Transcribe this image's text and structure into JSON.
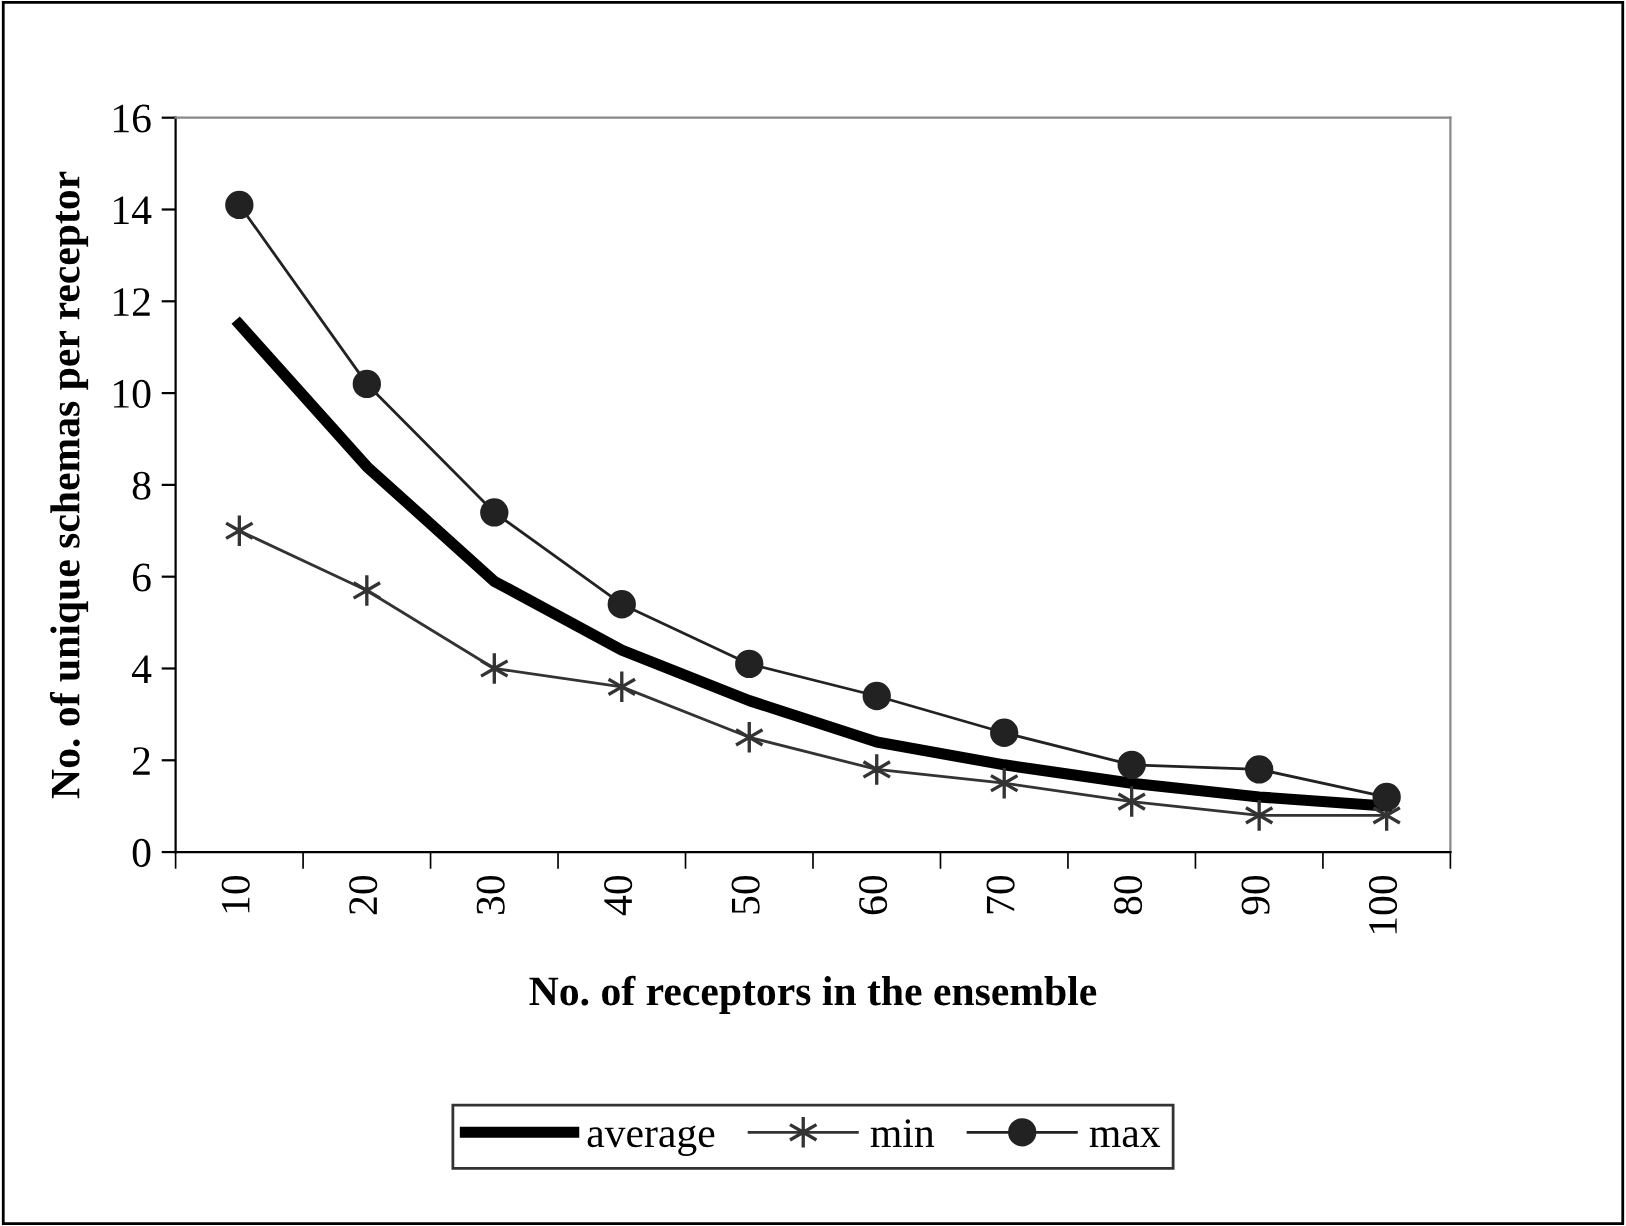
{
  "chart_data": {
    "type": "line",
    "xlabel": "No. of receptors in the ensemble",
    "ylabel": "No. of unique schemas per receptor",
    "categories": [
      "10",
      "20",
      "30",
      "40",
      "50",
      "60",
      "70",
      "80",
      "90",
      "100"
    ],
    "series": [
      {
        "name": "average",
        "color": "#000000",
        "marker": "none",
        "values": [
          11.5,
          8.4,
          5.9,
          4.4,
          3.3,
          2.4,
          1.9,
          1.5,
          1.2,
          1.0
        ]
      },
      {
        "name": "min",
        "color": "#333333",
        "marker": "cross",
        "values": [
          7.0,
          5.7,
          4.0,
          3.6,
          2.5,
          1.8,
          1.5,
          1.1,
          0.8,
          0.8
        ]
      },
      {
        "name": "max",
        "color": "#222222",
        "marker": "circle",
        "values": [
          14.1,
          10.2,
          7.4,
          5.4,
          4.1,
          3.4,
          2.6,
          1.9,
          1.8,
          1.2
        ]
      }
    ],
    "ylim": [
      0,
      16
    ],
    "yticks": [
      0,
      2,
      4,
      6,
      8,
      10,
      12,
      14,
      16
    ],
    "grid": false,
    "legend": "bottom",
    "line_style": "solid"
  }
}
